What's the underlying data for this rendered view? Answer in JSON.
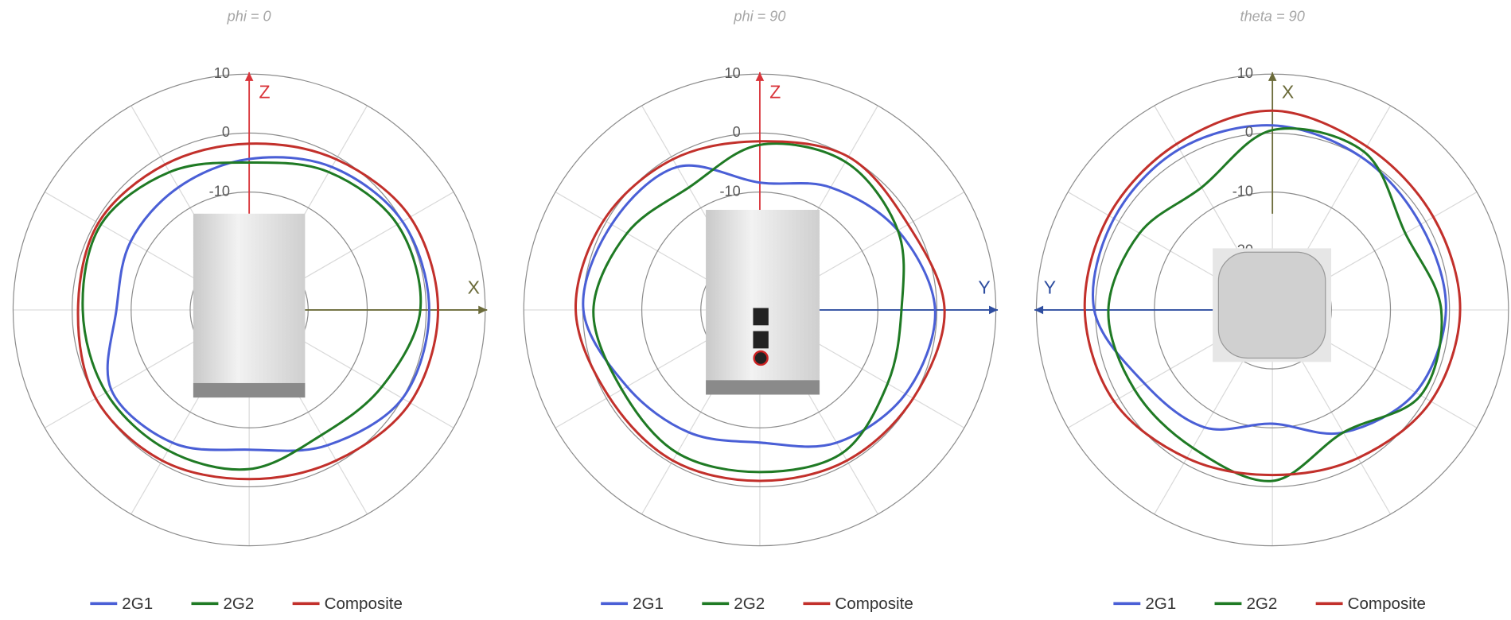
{
  "chart_data": [
    {
      "type": "polar",
      "title": "phi = 0",
      "rlim": [
        -30,
        10
      ],
      "rticks": [
        -20,
        -10,
        0,
        10
      ],
      "grid": true,
      "theta": [
        0,
        30,
        60,
        90,
        120,
        150,
        180,
        210,
        240,
        270,
        300,
        330
      ],
      "axes": [
        {
          "label": "Z",
          "direction": "up",
          "color": "#d9343a"
        },
        {
          "label": "X",
          "direction": "right",
          "color": "#6b6b3a"
        }
      ],
      "series": [
        {
          "name": "2G1",
          "color": "#4a5fd6",
          "values": [
            -4.4,
            -2,
            0,
            0.5,
            0,
            -3.5,
            -6.3,
            -4,
            -3,
            -7.5,
            -6.8,
            -6
          ]
        },
        {
          "name": "2G2",
          "color": "#1f7a24",
          "values": [
            -5,
            -3,
            -1,
            -1,
            -4,
            -5.5,
            -3,
            -2.5,
            -2,
            -1.8,
            -1,
            -3
          ]
        },
        {
          "name": "Composite",
          "color": "#c2302b",
          "values": [
            -1.8,
            -0.5,
            1.5,
            2,
            1.5,
            -0.5,
            -1.3,
            -0.5,
            0,
            -1,
            -0.5,
            -1.5
          ]
        }
      ]
    },
    {
      "type": "polar",
      "title": "phi = 90",
      "rlim": [
        -30,
        10
      ],
      "rticks": [
        -20,
        -10,
        0,
        10
      ],
      "grid": true,
      "theta": [
        0,
        30,
        60,
        90,
        120,
        150,
        180,
        210,
        240,
        270,
        300,
        330
      ],
      "axes": [
        {
          "label": "Z",
          "direction": "up",
          "color": "#d9343a"
        },
        {
          "label": "Y",
          "direction": "right",
          "color": "#2f4ea0"
        }
      ],
      "series": [
        {
          "name": "2G1",
          "color": "#4a5fd6",
          "values": [
            -8.4,
            -6,
            -3,
            -0.3,
            -1.5,
            -4,
            -7.5,
            -6,
            -4,
            -0.1,
            -1,
            -2
          ]
        },
        {
          "name": "2G2",
          "color": "#1f7a24",
          "values": [
            -2,
            -1,
            -3,
            -6,
            -5,
            -2,
            -2.5,
            -2,
            -3,
            -1.8,
            -4,
            -6
          ]
        },
        {
          "name": "Composite",
          "color": "#c2302b",
          "values": [
            -1.4,
            0,
            -1,
            1.3,
            0,
            -0.5,
            -1,
            -0.5,
            -0.5,
            1.2,
            0.5,
            -0.5
          ]
        }
      ]
    },
    {
      "type": "polar",
      "title": "theta = 90",
      "rlim": [
        -30,
        10
      ],
      "rticks": [
        -20,
        -10,
        0,
        10
      ],
      "grid": true,
      "theta": [
        0,
        30,
        60,
        90,
        120,
        150,
        180,
        210,
        240,
        270,
        300,
        330
      ],
      "axes": [
        {
          "label": "X",
          "direction": "up",
          "color": "#6b6b3a"
        },
        {
          "label": "Y",
          "direction": "left",
          "color": "#2f4ea0"
        }
      ],
      "series": [
        {
          "name": "2G1",
          "color": "#4a5fd6",
          "values": [
            1.3,
            0,
            -1,
            -0.6,
            -2,
            -6,
            -10.7,
            -7,
            -5,
            0.2,
            1,
            1.5
          ]
        },
        {
          "name": "2G2",
          "color": "#1f7a24",
          "values": [
            0.5,
            1,
            -4,
            -1.4,
            -1,
            -6,
            -1,
            -3,
            -3,
            -2.2,
            -4,
            -6
          ]
        },
        {
          "name": "Composite",
          "color": "#c2302b",
          "values": [
            3.8,
            2,
            1.5,
            1.8,
            1,
            -1,
            -2,
            -1,
            1,
            1.8,
            2,
            2.5
          ]
        }
      ]
    }
  ]
}
